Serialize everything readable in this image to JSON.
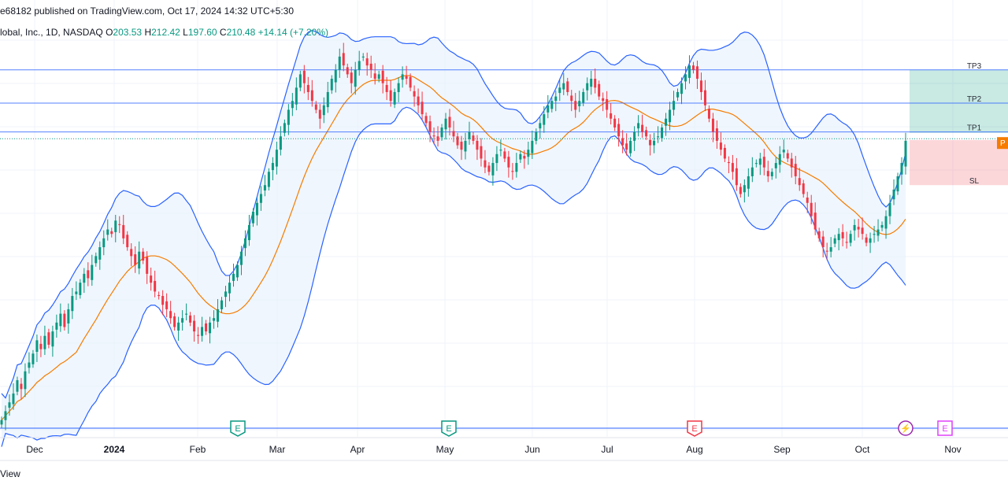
{
  "header": {
    "publish_line": "e68182 published on TradingView.com, Oct 17, 2024 14:32 UTC+5:30",
    "symbol_line": "lobal, Inc., 1D, NASDAQ",
    "open_label": "O",
    "open": "203.53",
    "high_label": "H",
    "high": "212.42",
    "low_label": "L",
    "low": "197.60",
    "close_label": "C",
    "close": "210.48",
    "change": "+14.14 (+7.20%)"
  },
  "footer": {
    "brand": "View"
  },
  "colors": {
    "up": "#089981",
    "down": "#f23645",
    "bollinger": "#2962ff",
    "basis": "#f57c00",
    "band_fill": "#e3eefb",
    "target": "#089981",
    "stop": "#f23645",
    "hline": "#2962ff",
    "earnings": "#089981",
    "earnings_neg": "#f23645",
    "earnings_future": "#e040fb",
    "dividend": "#9c27b0"
  },
  "chart_data": {
    "type": "candlestick",
    "x_axis": {
      "ticks": [
        "Dec",
        "2024",
        "Feb",
        "Mar",
        "Apr",
        "May",
        "Jun",
        "Jul",
        "Aug",
        "Sep",
        "Oct",
        "Nov"
      ]
    },
    "y_range": [
      145,
      232
    ],
    "grid": true,
    "last_close": 210.48,
    "levels": [
      {
        "label": "TP3",
        "price": 226.0
      },
      {
        "label": "TP2",
        "price": 218.5
      },
      {
        "label": "TP1",
        "price": 212.0
      },
      {
        "label": "SL",
        "price": 200.0
      }
    ],
    "entry_badge_text": "P",
    "events": [
      {
        "month": "Feb",
        "type": "earnings",
        "label": "E"
      },
      {
        "month": "May",
        "type": "earnings",
        "label": "E"
      },
      {
        "month": "Aug",
        "type": "earnings-negative",
        "label": "E"
      },
      {
        "month": "Oct",
        "type": "dividend",
        "label": "⚡"
      },
      {
        "month": "Nov",
        "type": "earnings-future",
        "label": "E"
      }
    ],
    "closes": [
      147,
      149,
      151,
      153,
      156,
      154,
      158,
      160,
      162,
      165,
      163,
      166,
      164,
      167,
      169,
      171,
      168,
      172,
      175,
      176,
      178,
      180,
      179,
      182,
      184,
      186,
      188,
      190,
      189,
      192,
      191,
      188,
      186,
      184,
      182,
      185,
      183,
      180,
      178,
      176,
      175,
      173,
      172,
      170,
      168,
      169,
      170,
      171,
      169,
      167,
      166,
      168,
      167,
      169,
      170,
      172,
      174,
      176,
      178,
      180,
      182,
      185,
      188,
      191,
      194,
      196,
      198,
      200,
      203,
      205,
      208,
      211,
      214,
      217,
      219,
      222,
      225,
      223,
      221,
      219,
      217,
      215,
      218,
      221,
      224,
      226,
      229,
      227,
      225,
      223,
      226,
      228,
      229,
      227,
      226,
      224,
      225,
      223,
      221,
      219,
      221,
      223,
      225,
      224,
      222,
      220,
      218,
      216,
      214,
      212,
      211,
      210,
      213,
      215,
      213,
      211,
      209,
      208,
      210,
      212,
      210,
      208,
      206,
      204,
      203,
      205,
      207,
      208,
      206,
      204,
      203,
      205,
      207,
      206,
      208,
      210,
      212,
      214,
      216,
      218,
      219,
      220,
      222,
      223,
      221,
      219,
      217,
      219,
      221,
      223,
      224,
      222,
      220,
      219,
      217,
      215,
      213,
      211,
      209,
      208,
      210,
      212,
      214,
      212,
      211,
      209,
      210,
      211,
      213,
      215,
      217,
      219,
      221,
      223,
      225,
      227,
      226,
      224,
      221,
      218,
      215,
      212,
      210,
      208,
      206,
      205,
      203,
      200,
      198,
      200,
      202,
      204,
      205,
      206,
      204,
      202,
      203,
      205,
      207,
      208,
      206,
      204,
      202,
      200,
      198,
      196,
      193,
      190,
      188,
      186,
      185,
      186,
      188,
      189,
      188,
      187,
      189,
      191,
      190,
      189,
      187,
      188,
      189,
      190,
      191,
      193,
      196,
      199,
      202,
      205,
      210
    ]
  }
}
